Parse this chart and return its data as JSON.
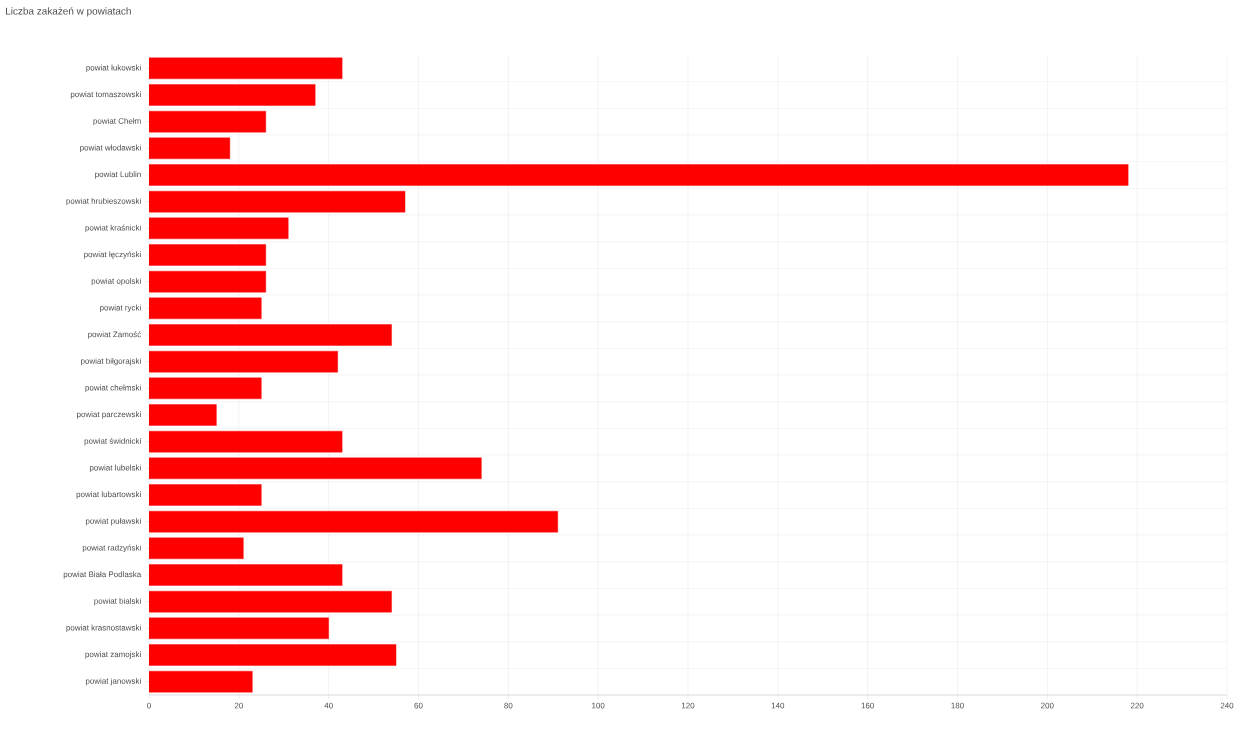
{
  "chart_data": {
    "type": "bar",
    "orientation": "horizontal",
    "title": "Liczba zakażeń w powiatach",
    "categories": [
      "powiat łukowski",
      "powiat tomaszowski",
      "powiat Chełm",
      "powiat włodawski",
      "powiat Lublin",
      "powiat hrubieszowski",
      "powiat kraśnicki",
      "powiat łęczyński",
      "powiat opolski",
      "powiat rycki",
      "powiat Zamość",
      "powiat biłgorajski",
      "powiat chełmski",
      "powiat parczewski",
      "powiat świdnicki",
      "powiat lubelski",
      "powiat lubartowski",
      "powiat puławski",
      "powiat radzyński",
      "powiat Biała Podlaska",
      "powiat bialski",
      "powiat krasnostawski",
      "powiat zamojski",
      "powiat janowski"
    ],
    "values": [
      43,
      37,
      26,
      18,
      218,
      57,
      31,
      26,
      26,
      25,
      54,
      42,
      25,
      15,
      43,
      74,
      25,
      91,
      21,
      43,
      54,
      40,
      55,
      23
    ],
    "color": "#ff0000",
    "xlim": [
      0,
      240
    ],
    "xticks": [
      0,
      20,
      40,
      60,
      80,
      100,
      120,
      140,
      160,
      180,
      200,
      220,
      240
    ],
    "grid": true
  }
}
